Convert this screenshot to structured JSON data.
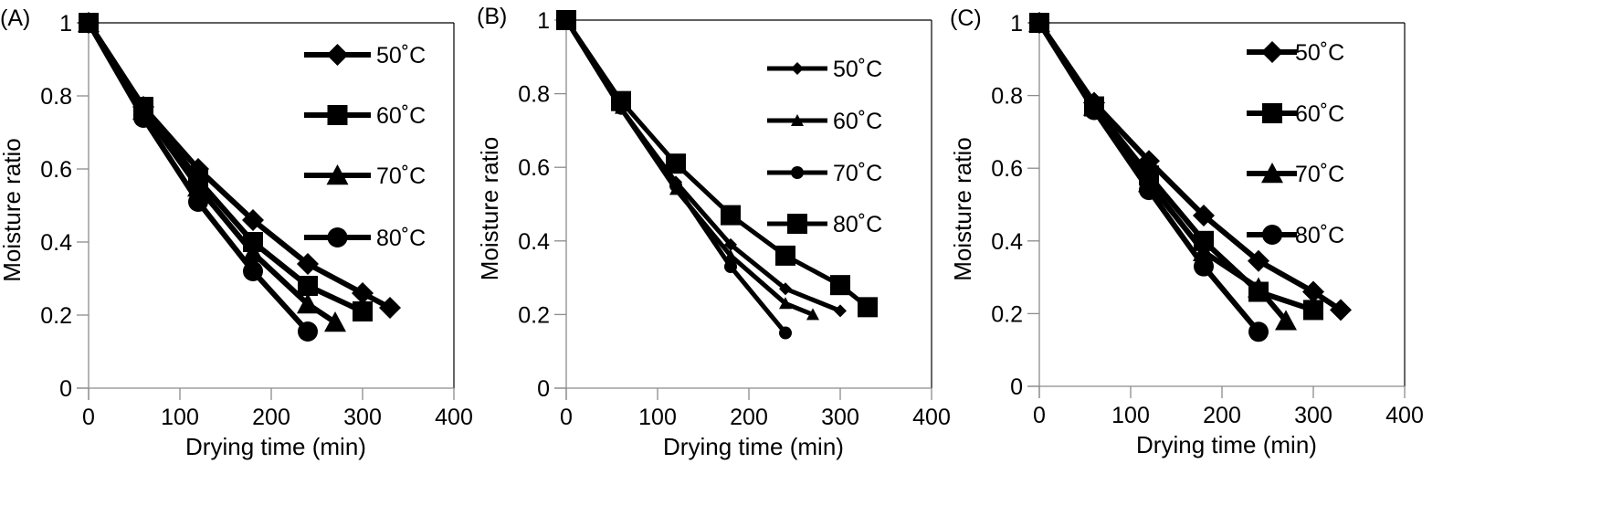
{
  "chart_data": [
    {
      "type": "line",
      "panel_label": "(A)",
      "xlabel": "Drying time (min)",
      "ylabel": "Moisture ratio",
      "xlim": [
        0,
        400
      ],
      "ylim": [
        0,
        1
      ],
      "xticks": [
        "0",
        "100",
        "200",
        "300",
        "400"
      ],
      "yticks": [
        "0",
        "0.2",
        "0.4",
        "0.6",
        "0.8",
        "1"
      ],
      "grid": false,
      "legend_position": "top-right",
      "series": [
        {
          "name": "50˚C",
          "marker": "diamond",
          "x": [
            0,
            60,
            120,
            180,
            240,
            300,
            330
          ],
          "y": [
            1.0,
            0.77,
            0.6,
            0.46,
            0.34,
            0.26,
            0.22
          ]
        },
        {
          "name": "60˚C",
          "marker": "square",
          "x": [
            0,
            60,
            120,
            180,
            240,
            300
          ],
          "y": [
            1.0,
            0.77,
            0.57,
            0.4,
            0.28,
            0.21
          ]
        },
        {
          "name": "70˚C",
          "marker": "triangle",
          "x": [
            0,
            60,
            120,
            180,
            240,
            270
          ],
          "y": [
            1.0,
            0.76,
            0.55,
            0.37,
            0.23,
            0.18
          ]
        },
        {
          "name": "80˚C",
          "marker": "circle",
          "x": [
            0,
            60,
            120,
            180,
            240
          ],
          "y": [
            1.0,
            0.74,
            0.51,
            0.32,
            0.155
          ]
        }
      ]
    },
    {
      "type": "line",
      "panel_label": "(B)",
      "xlabel": "Drying time (min)",
      "ylabel": "Moisture ratio",
      "xlim": [
        0,
        400
      ],
      "ylim": [
        0,
        1
      ],
      "xticks": [
        "0",
        "100",
        "200",
        "300",
        "400"
      ],
      "yticks": [
        "0",
        "0.2",
        "0.4",
        "0.6",
        "0.8",
        "1"
      ],
      "grid": false,
      "legend_position": "top-right",
      "series": [
        {
          "name": "50˚C",
          "marker": "diamond",
          "x": [
            0,
            60,
            120,
            180,
            240,
            300
          ],
          "y": [
            1.0,
            0.76,
            0.56,
            0.39,
            0.27,
            0.21
          ]
        },
        {
          "name": "60˚C",
          "marker": "triangle",
          "x": [
            0,
            60,
            120,
            180,
            240,
            270
          ],
          "y": [
            1.0,
            0.76,
            0.54,
            0.36,
            0.23,
            0.2
          ]
        },
        {
          "name": "70˚C",
          "marker": "circle",
          "x": [
            0,
            60,
            120,
            180,
            240
          ],
          "y": [
            1.0,
            0.76,
            0.55,
            0.33,
            0.15
          ]
        },
        {
          "name": "80˚C",
          "marker": "square",
          "x": [
            0,
            60,
            120,
            180,
            240,
            300,
            330
          ],
          "y": [
            1.0,
            0.78,
            0.61,
            0.47,
            0.36,
            0.28,
            0.22
          ]
        }
      ]
    },
    {
      "type": "line",
      "panel_label": "(C)",
      "xlabel": "Drying time (min)",
      "ylabel": "Moisture ratio",
      "xlim": [
        0,
        400
      ],
      "ylim": [
        0,
        1
      ],
      "xticks": [
        "0",
        "100",
        "200",
        "300",
        "400"
      ],
      "yticks": [
        "0",
        "0.2",
        "0.4",
        "0.6",
        "0.8",
        "1"
      ],
      "grid": false,
      "legend_position": "top-right",
      "series": [
        {
          "name": "50˚C",
          "marker": "diamond",
          "x": [
            0,
            60,
            120,
            180,
            240,
            300,
            330
          ],
          "y": [
            1.0,
            0.78,
            0.62,
            0.47,
            0.345,
            0.26,
            0.21
          ]
        },
        {
          "name": "60˚C",
          "marker": "square",
          "x": [
            0,
            60,
            120,
            180,
            240,
            300
          ],
          "y": [
            1.0,
            0.77,
            0.58,
            0.4,
            0.26,
            0.21
          ]
        },
        {
          "name": "70˚C",
          "marker": "triangle",
          "x": [
            0,
            60,
            120,
            180,
            240,
            270
          ],
          "y": [
            1.0,
            0.77,
            0.56,
            0.37,
            0.27,
            0.18
          ]
        },
        {
          "name": "80˚C",
          "marker": "circle",
          "x": [
            0,
            60,
            120,
            180,
            240
          ],
          "y": [
            1.0,
            0.76,
            0.54,
            0.33,
            0.15
          ]
        }
      ]
    }
  ],
  "colors": {
    "series": "#000000",
    "axis": "#8c8c8c",
    "frame": "#000000"
  }
}
